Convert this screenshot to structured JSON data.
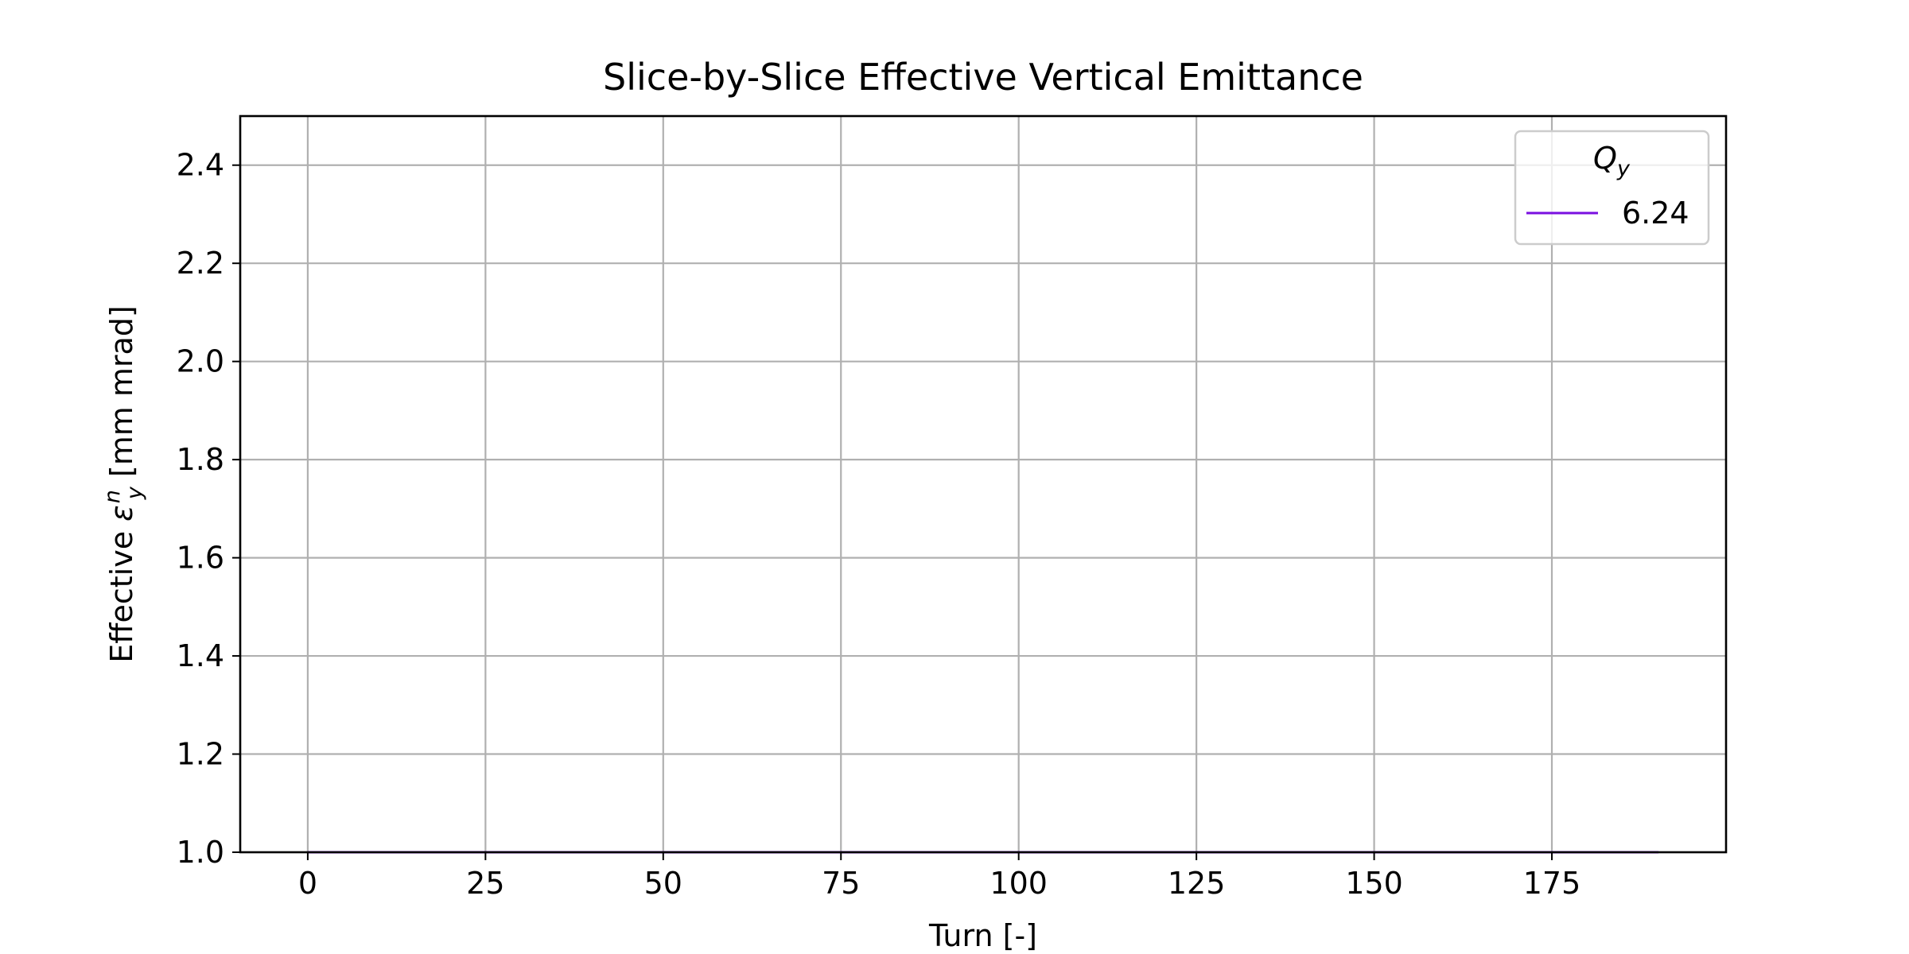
{
  "chart_data": {
    "type": "line",
    "title": "Slice-by-Slice Effective Vertical Emittance",
    "xlabel": "Turn [-]",
    "ylabel_prefix": "Effective ",
    "ylabel_symbol": "ε",
    "ylabel_subscript": "y",
    "ylabel_superscript": "n",
    "ylabel_unit": " [mm mrad]",
    "xlim": [
      -9.5,
      199.5
    ],
    "ylim": [
      1.0,
      2.5
    ],
    "xticks": [
      0,
      25,
      50,
      75,
      100,
      125,
      150,
      175
    ],
    "xtick_labels": [
      "0",
      "25",
      "50",
      "75",
      "100",
      "125",
      "150",
      "175"
    ],
    "yticks": [
      1.0,
      1.2,
      1.4,
      1.6,
      1.8,
      2.0,
      2.2,
      2.4
    ],
    "ytick_labels": [
      "1.0",
      "1.2",
      "1.4",
      "1.6",
      "1.8",
      "2.0",
      "2.2",
      "2.4"
    ],
    "grid": true,
    "legend": {
      "placement": "top-right",
      "title_main": "Q",
      "title_sub": "y"
    },
    "series": [
      {
        "name": "6.24",
        "color": "#7a0fe0",
        "x": [
          0,
          190
        ],
        "y": [
          1.0,
          1.0
        ]
      }
    ]
  }
}
